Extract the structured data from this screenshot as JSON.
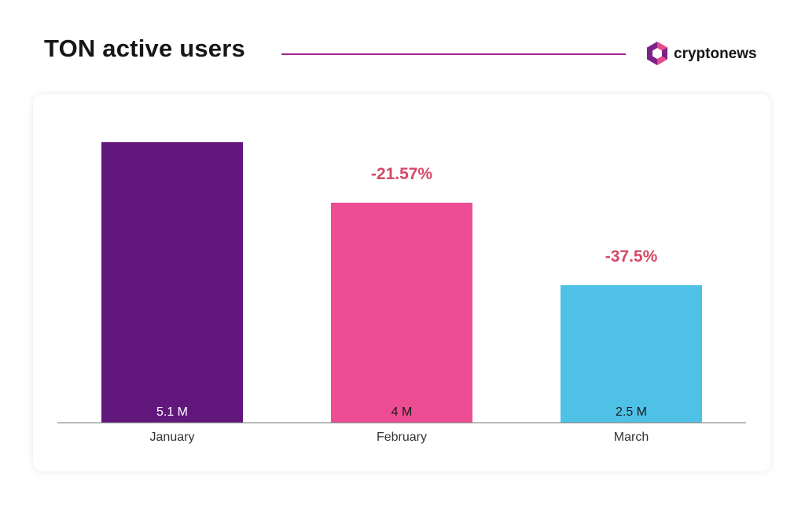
{
  "header": {
    "title": "TON active users",
    "brand": "cryptonews"
  },
  "colors": {
    "rule": "#a2238f",
    "logo_primary": "#7b2288",
    "logo_secondary": "#e84a8a",
    "axis": "#777777",
    "change_label": "#d44965"
  },
  "chart_data": {
    "type": "bar",
    "title": "TON active users",
    "categories": [
      "January",
      "February",
      "March"
    ],
    "values": [
      5.1,
      4.0,
      2.5
    ],
    "unit": "M",
    "value_labels": [
      "5.1 M",
      "4 M",
      "2.5 M"
    ],
    "bar_colors": [
      "#62177d",
      "#ed4d93",
      "#4fc1e6"
    ],
    "value_label_colors": [
      "#ffffff",
      "#1a1a1a",
      "#1a1a1a"
    ],
    "change_labels": [
      "",
      "-21.57%",
      "-37.5%"
    ],
    "xlabel": "",
    "ylabel": "",
    "ylim": [
      0,
      5.1
    ],
    "grid": false,
    "legend": "none"
  }
}
